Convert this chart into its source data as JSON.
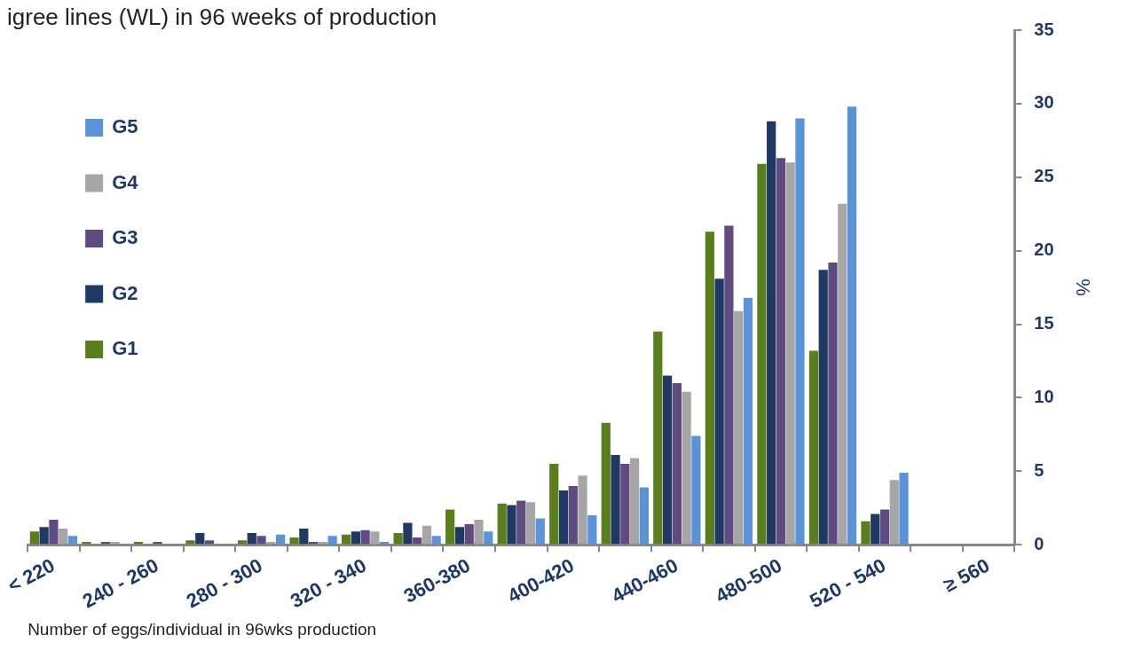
{
  "chart_data": {
    "type": "bar",
    "title": "igree lines (WL) in 96 weeks of production",
    "xlabel": "Number of eggs/individual in 96wks production",
    "ylabel": "%",
    "categories": [
      "< 220",
      null,
      "240 - 260",
      null,
      "280 - 300",
      null,
      "320 - 340",
      null,
      "360-380",
      null,
      "400-420",
      null,
      "440-460",
      null,
      "480-500",
      null,
      "520 - 540",
      null,
      "≥ 560"
    ],
    "series": [
      {
        "name": "G1",
        "color": "#5a7d1e",
        "values": [
          0.9,
          0.2,
          0.2,
          0.3,
          0.3,
          0.5,
          0.7,
          0.8,
          2.4,
          2.8,
          5.5,
          8.3,
          14.5,
          21.3,
          25.9,
          13.2,
          1.6,
          0,
          0
        ]
      },
      {
        "name": "G2",
        "color": "#1f3864",
        "values": [
          1.2,
          0,
          0,
          0.8,
          0.8,
          1.1,
          0.9,
          1.5,
          1.2,
          2.7,
          3.7,
          6.1,
          11.5,
          18.1,
          28.8,
          18.7,
          2.1,
          0,
          0
        ]
      },
      {
        "name": "G3",
        "color": "#5f4b7f",
        "values": [
          1.7,
          0.2,
          0.2,
          0.3,
          0.6,
          0.2,
          1.0,
          0.5,
          1.4,
          3.0,
          4.0,
          5.5,
          11.0,
          21.7,
          26.3,
          19.2,
          2.4,
          0,
          0
        ]
      },
      {
        "name": "G4",
        "color": "#a6a6a6",
        "values": [
          1.1,
          0.2,
          null,
          null,
          0.2,
          0.2,
          0.9,
          1.3,
          1.7,
          2.9,
          4.7,
          5.9,
          10.4,
          15.9,
          26.0,
          23.2,
          4.4,
          0,
          0
        ]
      },
      {
        "name": "G5",
        "color": "#5b93d8",
        "values": [
          0.6,
          0,
          null,
          0,
          0.7,
          0.6,
          0.2,
          0.6,
          0.9,
          1.8,
          2.0,
          3.9,
          7.4,
          16.8,
          29.0,
          29.8,
          4.9,
          0,
          0
        ]
      }
    ],
    "ylim": [
      0,
      35
    ],
    "yticks": [
      0,
      5,
      10,
      15,
      20,
      25,
      30,
      35
    ],
    "grid": false,
    "legend": "top left"
  }
}
